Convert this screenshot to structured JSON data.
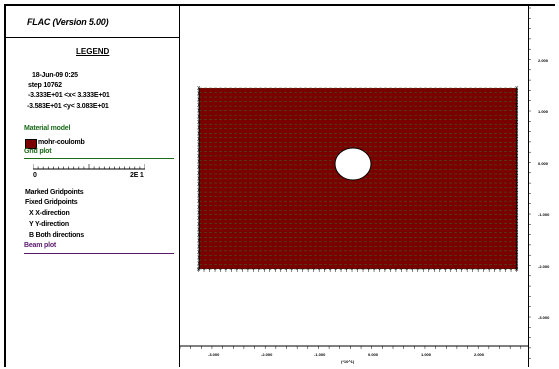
{
  "app_title": "FLAC (Version 5.00)",
  "legend": {
    "heading": "LEGEND",
    "date_time": "18-Jun-09  0:25",
    "step": "step   10762",
    "x_range": "-3.333E+01 <x<  3.333E+01",
    "y_range": "-3.583E+01 <y<  3.083E+01",
    "material_model_label": "Material model",
    "material_name": "mohr-coulomb",
    "grid_plot_label": "Grid plot",
    "scale_min": "0",
    "scale_max": "2E 1",
    "marked_gridpoints": "Marked Gridpoints",
    "fixed_gridpoints": "Fixed Gridpoints",
    "x_direction": "X  X-direction",
    "y_direction": "Y  Y-direction",
    "both_directions": "B  Both directions",
    "beam_plot_label": "Beam plot"
  },
  "plot": {
    "x_axis_label": "(*10^1)",
    "x_ticks": [
      "-2.000",
      "-1.000",
      "0.000",
      "1.000",
      "2.000",
      "-3.000"
    ],
    "y_ticks": [
      "2.000",
      "1.000",
      "0.000",
      "-1.000",
      "-2.000",
      "-3.000"
    ],
    "x_tick_order": [
      "-3.000",
      "-2.000",
      "-1.000",
      "0.000",
      "1.000",
      "2.000"
    ]
  },
  "colors": {
    "material": "#7a0000",
    "grid_lines": "#2f6b2a",
    "material_label": "#1a6b1a",
    "beam_label": "#5a1a6b"
  }
}
